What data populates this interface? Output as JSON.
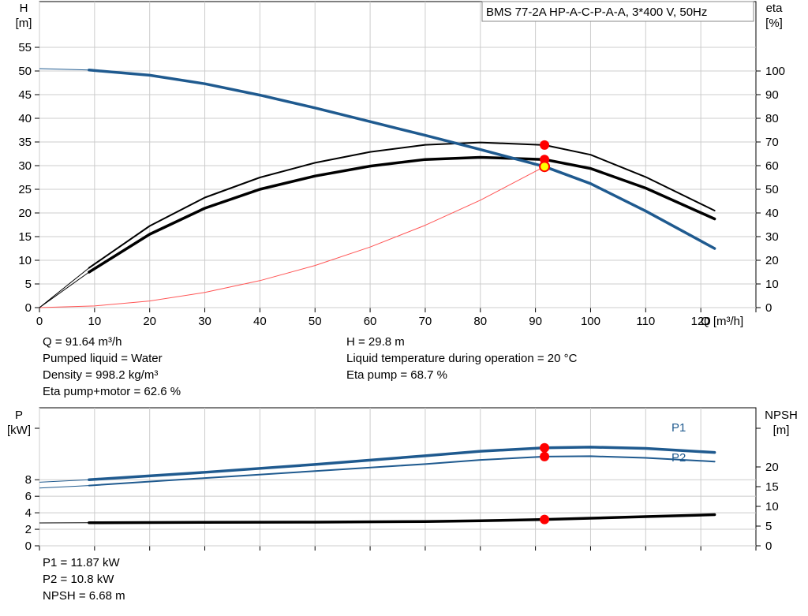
{
  "chart_data": [
    {
      "type": "line",
      "title": "BMS 77-2A HP-A-C-P-A-A, 3*400 V, 50Hz",
      "xlabel": "Q [m³/h]",
      "ylabel": "H\n[m]",
      "ylabel_right": "eta\n[%]",
      "xlim": [
        0,
        130
      ],
      "ylim": [
        0,
        55
      ],
      "ylim_right": [
        0,
        110
      ],
      "x_ticks": [
        0,
        10,
        20,
        30,
        40,
        50,
        60,
        70,
        80,
        90,
        100,
        110,
        120
      ],
      "y_ticks": [
        0,
        5,
        10,
        15,
        20,
        25,
        30,
        35,
        40,
        45,
        50,
        55
      ],
      "y_right_ticks": [
        0,
        10,
        20,
        30,
        40,
        50,
        60,
        70,
        80,
        90,
        100
      ],
      "grid": true,
      "series": [
        {
          "key": "H",
          "axis": "left",
          "color": "#1f5a8f",
          "width": 3.5,
          "x": [
            0,
            9,
            20,
            30,
            40,
            50,
            60,
            70,
            80,
            91.64,
            100,
            110,
            122.5
          ],
          "y": [
            50.5,
            50.2,
            49.1,
            47.3,
            44.9,
            42.2,
            39.3,
            36.4,
            33.4,
            29.8,
            26.2,
            20.4,
            12.5
          ],
          "dashed_from": 9
        },
        {
          "key": "eta_pump",
          "axis": "right",
          "color": "#000000",
          "width": 2,
          "x": [
            0,
            9,
            20,
            30,
            40,
            50,
            60,
            70,
            80,
            91.64,
            100,
            110,
            122.5
          ],
          "y": [
            0,
            16.8,
            34.5,
            46.5,
            55,
            61.2,
            65.8,
            68.8,
            69.8,
            68.7,
            64.6,
            55.2,
            41
          ],
          "dashed_from": 9
        },
        {
          "key": "eta_total",
          "axis": "right",
          "color": "#000000",
          "width": 3.5,
          "x": [
            0,
            9,
            20,
            30,
            40,
            50,
            60,
            70,
            80,
            91.64,
            100,
            110,
            122.5
          ],
          "y": [
            0,
            15,
            31,
            42,
            50,
            55.6,
            59.8,
            62.6,
            63.5,
            62.6,
            58.8,
            50.5,
            37.5
          ],
          "dashed_from": 9
        },
        {
          "key": "system",
          "axis": "left",
          "color": "#ff5555",
          "width": 1,
          "x": [
            0,
            10,
            20,
            30,
            40,
            50,
            60,
            70,
            80,
            91.64
          ],
          "y": [
            0,
            0.35,
            1.4,
            3.2,
            5.7,
            8.9,
            12.8,
            17.4,
            22.7,
            29.8
          ]
        }
      ],
      "operating_point": {
        "x": 91.64,
        "h": 29.8,
        "eta_pump": 68.7,
        "eta_total": 62.6
      }
    },
    {
      "type": "line",
      "ylabel": "P\n[kW]",
      "ylabel_right": "NPSH\n[m]",
      "xlim": [
        0,
        130
      ],
      "ylim": [
        0,
        17
      ],
      "ylim_right": [
        0,
        25
      ],
      "y_ticks": [
        0,
        2,
        4,
        6,
        8
      ],
      "y_right_ticks": [
        0,
        5,
        10,
        15,
        20
      ],
      "grid": true,
      "series": [
        {
          "key": "P1",
          "name": "P1",
          "axis": "left",
          "color": "#1f5a8f",
          "width": 3.5,
          "x": [
            0,
            9,
            30,
            50,
            70,
            80,
            91.64,
            100,
            110,
            122.5
          ],
          "y": [
            7.7,
            8.0,
            8.9,
            9.85,
            10.9,
            11.45,
            11.87,
            11.95,
            11.8,
            11.3
          ],
          "dashed_from": 9
        },
        {
          "key": "P2",
          "name": "P2",
          "axis": "left",
          "color": "#1f5a8f",
          "width": 2,
          "x": [
            0,
            9,
            30,
            50,
            70,
            80,
            91.64,
            100,
            110,
            122.5
          ],
          "y": [
            7.0,
            7.3,
            8.2,
            9.05,
            9.9,
            10.4,
            10.8,
            10.85,
            10.65,
            10.2
          ],
          "dashed_from": 9
        },
        {
          "key": "NPSH",
          "axis": "right",
          "color": "#000000",
          "width": 3.5,
          "x": [
            0,
            9,
            30,
            50,
            70,
            80,
            91.64,
            100,
            110,
            122.5
          ],
          "y": [
            5.8,
            5.85,
            5.95,
            6.0,
            6.15,
            6.35,
            6.68,
            7.0,
            7.4,
            7.9
          ],
          "dashed_from": 9
        }
      ],
      "operating_point": {
        "x": 91.64,
        "P1": 11.87,
        "P2": 10.8,
        "npsh": 6.68
      }
    }
  ],
  "info_top": {
    "q": "Q = 91.64 m³/h",
    "liquid": "Pumped liquid = Water",
    "density": "Density = 998.2 kg/m³",
    "eta_pm": "Eta pump+motor = 62.6 %",
    "h": "H = 29.8 m",
    "temp": "Liquid temperature during operation = 20 °C",
    "eta_p": "Eta pump = 68.7 %"
  },
  "info_bottom": {
    "p1": "P1 = 11.87 kW",
    "p2": "P2 = 10.8 kW",
    "npsh": "NPSH = 6.68 m"
  }
}
